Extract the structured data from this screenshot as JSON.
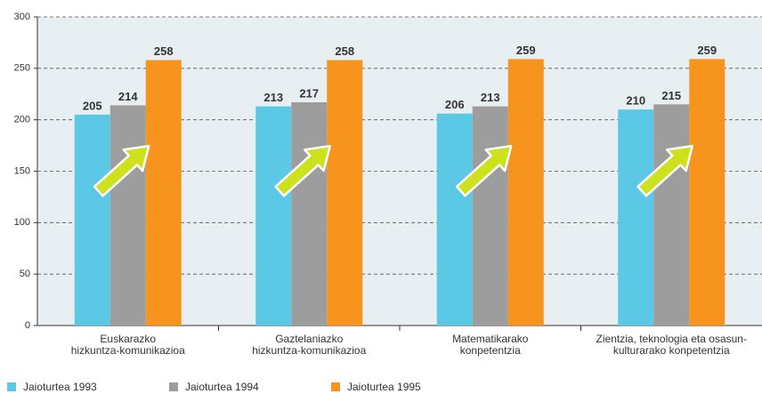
{
  "chart_data": {
    "type": "bar",
    "categories": [
      "Euskarazko\nhizkuntza-komunikazioa",
      "Gaztelaniazko\nhizkuntza-komunikazioa",
      "Matematikarako\nkonpetentzia",
      "Zientzia, teknologia eta osasun-\nkulturarako konpetentzia"
    ],
    "series": [
      {
        "name": "Jaioturtea 1993",
        "color": "#5bc8e6",
        "values": [
          205,
          213,
          206,
          210
        ]
      },
      {
        "name": "Jaioturtea 1994",
        "color": "#9d9d9d",
        "values": [
          214,
          217,
          213,
          215
        ]
      },
      {
        "name": "Jaioturtea 1995",
        "color": "#f7941d",
        "values": [
          258,
          258,
          259,
          259
        ]
      }
    ],
    "ylim": [
      0,
      300
    ],
    "yticks": [
      0,
      50,
      100,
      150,
      200,
      250,
      300
    ],
    "grid": true,
    "legend": "bottom"
  }
}
